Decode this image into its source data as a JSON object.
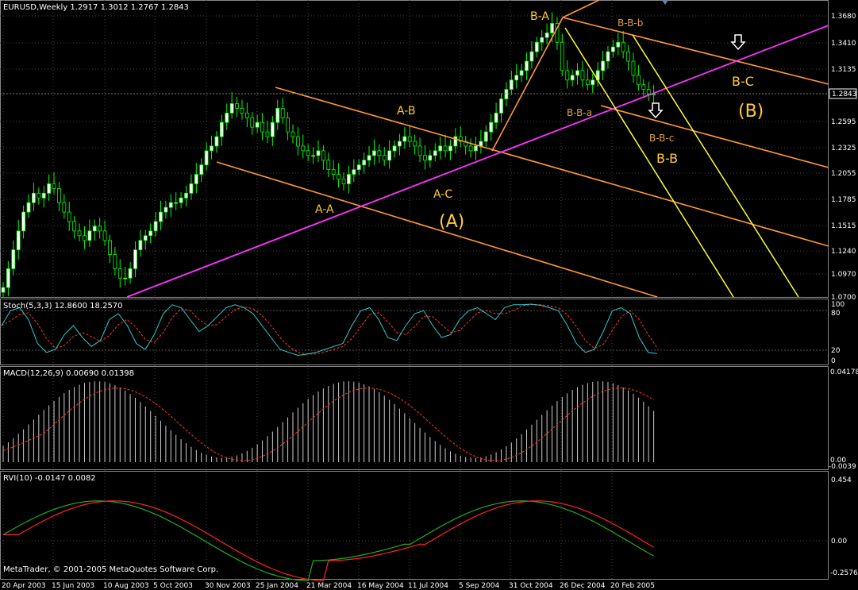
{
  "window": {
    "symbol_header": "EURUSD,Weekly  1.2917 1.3012 1.2767 1.2843",
    "copyright": "MetaTrader, © 2001-2005 MetaQuotes Software Corp."
  },
  "main_pane": {
    "current_price": "1.2843",
    "price_scale": [
      "1.3680",
      "1.3410",
      "1.3135",
      "1.2595",
      "1.2325",
      "1.2055",
      "1.1785",
      "1.1515",
      "1.1240",
      "1.0970",
      "1.0700"
    ],
    "wave_labels": {
      "B_A": "B-A",
      "B_B_b": "B-B-b",
      "A_B": "A-B",
      "B_B_a": "B-B-a",
      "B_C": "B-C",
      "B_paren": "(B)",
      "B_B_c": "B-B-c",
      "B_B": "B-B",
      "A_C": "A-C",
      "A_A": "A-A",
      "A_paren": "(A)"
    }
  },
  "stoch_pane": {
    "header": "Stoch(5,3,3) 12.8600 18.2570",
    "scale": [
      "100",
      "80",
      "20",
      "0"
    ]
  },
  "macd_pane": {
    "header": "MACD(12,26,9) 0.00690 0.01398",
    "scale": [
      "0.04178",
      "0.00",
      "-0.0039"
    ]
  },
  "rvi_pane": {
    "header": "RVI(10) -0.0147 0.0082",
    "scale": [
      "0.454",
      "0.00",
      "-0.2576"
    ]
  },
  "time_axis": [
    "20 Apr 2003",
    "15 Jun 2003",
    "10 Aug 2003",
    "5 Oct 2003",
    "30 Nov 2003",
    "25 Jan 2004",
    "21 Mar 2004",
    "16 May 2004",
    "11 Jul 2004",
    "5 Sep 2004",
    "31 Oct 2004",
    "26 Dec 2004",
    "20 Feb 2005"
  ],
  "colors": {
    "bull_candle": "#ffffff",
    "bear_candle": "#000000",
    "candle_wick": "#00ff00",
    "fan_orange": "#ff9933",
    "trendline_magenta": "#ff33ff",
    "fan_yellow": "#ffff33",
    "label_gold": "#ffcc33",
    "stoch_main": "#33cccc",
    "stoch_signal": "#ff3333",
    "rvi_main": "#22aa22",
    "rvi_signal": "#ff2222"
  },
  "chart_data": [
    {
      "type": "candlestick",
      "title": "EURUSD,Weekly",
      "ylim": [
        1.07,
        1.368
      ],
      "x": [
        "20 Apr 2003",
        "15 Jun 2003",
        "10 Aug 2003",
        "5 Oct 2003",
        "30 Nov 2003",
        "25 Jan 2004",
        "21 Mar 2004",
        "16 May 2004",
        "11 Jul 2004",
        "5 Sep 2004",
        "31 Oct 2004",
        "26 Dec 2004",
        "20 Feb 2005"
      ],
      "close_approx": [
        1.11,
        1.16,
        1.11,
        1.17,
        1.22,
        1.25,
        1.22,
        1.2,
        1.22,
        1.23,
        1.3,
        1.34,
        1.33
      ],
      "last_close": 1.2843
    },
    {
      "type": "line",
      "title": "Stoch(5,3,3)",
      "ylim": [
        0,
        100
      ],
      "series": [
        {
          "name": "Main",
          "last": 12.86
        },
        {
          "name": "Signal",
          "last": 18.257
        }
      ]
    },
    {
      "type": "bar",
      "title": "MACD(12,26,9)",
      "ylim": [
        -0.0039,
        0.04178
      ],
      "series": [
        {
          "name": "MACD",
          "last": 0.0069
        },
        {
          "name": "Signal",
          "last": 0.01398
        }
      ]
    },
    {
      "type": "line",
      "title": "RVI(10)",
      "ylim": [
        -0.2576,
        0.454
      ],
      "series": [
        {
          "name": "RVI",
          "last": -0.0147
        },
        {
          "name": "Signal",
          "last": 0.0082
        }
      ]
    }
  ]
}
